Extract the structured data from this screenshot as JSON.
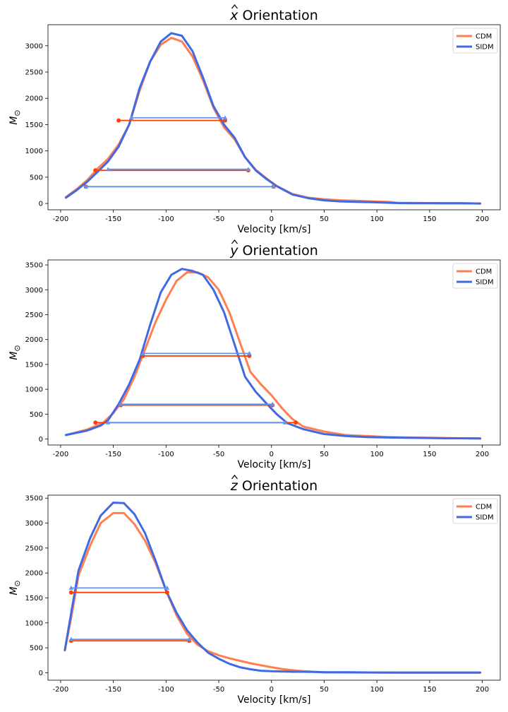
{
  "colors": {
    "cdm": "#ff7f50",
    "sidm": "#4169e1",
    "cdm_marker": "#ff4000",
    "sidm_marker": "#6495ed"
  },
  "legend_labels": [
    "CDM",
    "SIDM"
  ],
  "chart_data": [
    {
      "type": "line",
      "title_var": "x",
      "title_rest": " Orientation",
      "xlabel": "Velocity [km/s]",
      "ylabel_main": "M",
      "ylabel_sub": "⊙",
      "xlim": [
        -212,
        217
      ],
      "ylim": [
        -120,
        3400
      ],
      "xticks": [
        -200,
        -150,
        -100,
        -50,
        0,
        50,
        100,
        150,
        200
      ],
      "yticks": [
        0,
        500,
        1000,
        1500,
        2000,
        2500,
        3000
      ],
      "legend": "top-right",
      "series": [
        {
          "name": "CDM",
          "x": [
            -195,
            -185,
            -175,
            -165,
            -155,
            -145,
            -135,
            -125,
            -115,
            -105,
            -95,
            -85,
            -75,
            -65,
            -55,
            -45,
            -35,
            -25,
            -15,
            -5,
            5,
            20,
            35,
            50,
            65,
            80,
            95,
            110,
            120,
            135,
            150,
            165,
            180,
            198
          ],
          "y": [
            120,
            270,
            440,
            660,
            850,
            1120,
            1500,
            2150,
            2700,
            3020,
            3150,
            3080,
            2800,
            2350,
            1820,
            1450,
            1220,
            880,
            640,
            480,
            330,
            180,
            110,
            80,
            60,
            50,
            40,
            30,
            10,
            10,
            8,
            5,
            5,
            0
          ]
        },
        {
          "name": "SIDM",
          "x": [
            -195,
            -185,
            -175,
            -165,
            -155,
            -145,
            -135,
            -125,
            -115,
            -105,
            -95,
            -85,
            -75,
            -65,
            -55,
            -45,
            -35,
            -25,
            -15,
            -5,
            5,
            20,
            35,
            50,
            65,
            80,
            95,
            110,
            120,
            135,
            150,
            165,
            180,
            198
          ],
          "y": [
            110,
            250,
            410,
            600,
            800,
            1080,
            1500,
            2200,
            2700,
            3080,
            3240,
            3190,
            2900,
            2400,
            1850,
            1500,
            1250,
            880,
            630,
            470,
            330,
            170,
            100,
            60,
            40,
            30,
            25,
            15,
            8,
            5,
            5,
            5,
            5,
            0
          ]
        }
      ],
      "widths": [
        {
          "series": "CDM",
          "level": 1580,
          "x1": -145,
          "x2": -44
        },
        {
          "series": "SIDM",
          "level": 1630,
          "x1": -133,
          "x2": -44
        },
        {
          "series": "CDM",
          "level": 630,
          "x1": -167,
          "x2": -22
        },
        {
          "series": "SIDM",
          "level": 650,
          "x1": -155,
          "x2": -22
        },
        {
          "series": "CDM",
          "level": 320,
          "x1": -176,
          "x2": 2
        },
        {
          "series": "SIDM",
          "level": 320,
          "x1": -176,
          "x2": 2
        }
      ]
    },
    {
      "type": "line",
      "title_var": "y",
      "title_rest": " Orientation",
      "xlabel": "Velocity [km/s]",
      "ylabel_main": "M",
      "ylabel_sub": "⊙",
      "xlim": [
        -212,
        217
      ],
      "ylim": [
        -120,
        3600
      ],
      "xticks": [
        -200,
        -150,
        -100,
        -50,
        0,
        50,
        100,
        150,
        200
      ],
      "yticks": [
        0,
        500,
        1000,
        1500,
        2000,
        2500,
        3000,
        3500
      ],
      "legend": "top-right",
      "series": [
        {
          "name": "CDM",
          "x": [
            -195,
            -175,
            -160,
            -150,
            -140,
            -130,
            -120,
            -110,
            -100,
            -90,
            -80,
            -70,
            -60,
            -50,
            -40,
            -30,
            -20,
            -10,
            0,
            10,
            20,
            30,
            50,
            70,
            90,
            110,
            130,
            150,
            165,
            180,
            198
          ],
          "y": [
            80,
            190,
            320,
            520,
            800,
            1250,
            1800,
            2350,
            2800,
            3180,
            3350,
            3350,
            3250,
            3000,
            2550,
            1950,
            1350,
            1100,
            880,
            620,
            400,
            250,
            150,
            80,
            60,
            40,
            30,
            25,
            20,
            15,
            10
          ]
        },
        {
          "name": "SIDM",
          "x": [
            -195,
            -175,
            -162,
            -155,
            -145,
            -135,
            -125,
            -115,
            -105,
            -95,
            -85,
            -75,
            -65,
            -55,
            -45,
            -35,
            -25,
            -15,
            -5,
            5,
            15,
            30,
            50,
            70,
            90,
            110,
            130,
            150,
            165,
            180,
            198
          ],
          "y": [
            80,
            170,
            270,
            380,
            700,
            1100,
            1600,
            2300,
            2950,
            3300,
            3420,
            3380,
            3300,
            3000,
            2550,
            1900,
            1250,
            950,
            720,
            500,
            320,
            200,
            100,
            60,
            40,
            30,
            25,
            20,
            15,
            15,
            10
          ]
        }
      ],
      "widths": [
        {
          "series": "CDM",
          "level": 1670,
          "x1": -122,
          "x2": -21
        },
        {
          "series": "SIDM",
          "level": 1720,
          "x1": -122,
          "x2": -21
        },
        {
          "series": "CDM",
          "level": 680,
          "x1": -143,
          "x2": 1
        },
        {
          "series": "SIDM",
          "level": 700,
          "x1": -143,
          "x2": 1
        },
        {
          "series": "CDM",
          "level": 330,
          "x1": -167,
          "x2": 23
        },
        {
          "series": "SIDM",
          "level": 330,
          "x1": -155,
          "x2": 13
        }
      ]
    },
    {
      "type": "line",
      "title_var": "z",
      "title_rest": " Orientation",
      "xlabel": "Velocity [km/s]",
      "ylabel_main": "M",
      "ylabel_sub": "⊙",
      "xlim": [
        -212,
        217
      ],
      "ylim": [
        -150,
        3560
      ],
      "xticks": [
        -200,
        -150,
        -100,
        -50,
        0,
        50,
        100,
        150,
        200
      ],
      "yticks": [
        0,
        500,
        1000,
        1500,
        2000,
        2500,
        3000,
        3500
      ],
      "legend": "top-right",
      "series": [
        {
          "name": "CDM",
          "x": [
            -196,
            -190,
            -183,
            -172,
            -162,
            -150,
            -140,
            -130,
            -120,
            -110,
            -100,
            -90,
            -80,
            -70,
            -60,
            -50,
            -40,
            -30,
            -20,
            -10,
            0,
            10,
            20,
            30,
            40,
            50,
            75,
            100,
            125,
            150,
            175,
            198
          ],
          "y": [
            450,
            1100,
            1950,
            2550,
            3000,
            3200,
            3200,
            2980,
            2650,
            2200,
            1650,
            1150,
            780,
            560,
            430,
            350,
            290,
            240,
            190,
            150,
            110,
            75,
            50,
            30,
            20,
            10,
            5,
            5,
            0,
            0,
            0,
            0
          ]
        },
        {
          "name": "SIDM",
          "x": [
            -196,
            -190,
            -183,
            -172,
            -162,
            -150,
            -140,
            -130,
            -120,
            -110,
            -100,
            -90,
            -80,
            -70,
            -60,
            -50,
            -40,
            -30,
            -20,
            -10,
            0,
            10,
            20,
            30,
            40,
            50,
            75,
            100,
            125,
            150,
            175,
            198
          ],
          "y": [
            450,
            1200,
            2050,
            2700,
            3150,
            3410,
            3400,
            3180,
            2800,
            2250,
            1650,
            1200,
            850,
            600,
            400,
            280,
            180,
            110,
            70,
            40,
            30,
            25,
            20,
            20,
            15,
            10,
            8,
            5,
            5,
            5,
            5,
            5
          ]
        }
      ],
      "widths": [
        {
          "series": "CDM",
          "level": 1610,
          "x1": -190,
          "x2": -99
        },
        {
          "series": "SIDM",
          "level": 1700,
          "x1": -190,
          "x2": -99
        },
        {
          "series": "CDM",
          "level": 640,
          "x1": -190,
          "x2": -78
        },
        {
          "series": "SIDM",
          "level": 670,
          "x1": -190,
          "x2": -78
        }
      ]
    }
  ]
}
